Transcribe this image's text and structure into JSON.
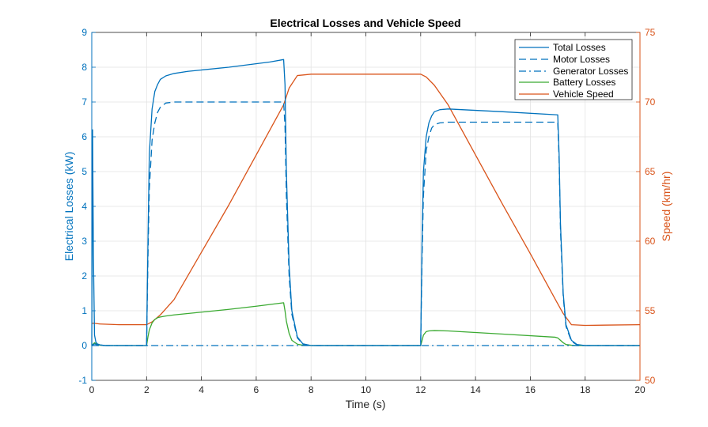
{
  "chart_data": {
    "type": "line",
    "title": "Electrical Losses and Vehicle Speed",
    "xlabel": "Time (s)",
    "ylabel_left": "Electrical Losses (kW)",
    "ylabel_right": "Speed (km/hr)",
    "xlim": [
      0,
      20
    ],
    "ylim_left": [
      -1,
      9
    ],
    "ylim_right": [
      50,
      75
    ],
    "xticks": [
      0,
      2,
      4,
      6,
      8,
      10,
      12,
      14,
      16,
      18,
      20
    ],
    "yticks_left": [
      -1,
      0,
      1,
      2,
      3,
      4,
      5,
      6,
      7,
      8,
      9
    ],
    "yticks_right": [
      50,
      55,
      60,
      65,
      70,
      75
    ],
    "grid": true,
    "legend_position": "top-right",
    "colors": {
      "blue": "#0072BD",
      "orange": "#D95319",
      "green": "#3BAA32"
    },
    "series": [
      {
        "name": "Total Losses",
        "axis": "left",
        "color": "#0072BD",
        "style": "solid",
        "x": [
          0,
          0.03,
          0.06,
          0.1,
          0.15,
          0.2,
          0.3,
          0.5,
          2.0,
          2.05,
          2.1,
          2.2,
          2.3,
          2.4,
          2.5,
          2.7,
          3.0,
          3.5,
          5.0,
          6.5,
          7.0,
          7.05,
          7.1,
          7.2,
          7.3,
          7.5,
          7.7,
          8.0,
          12.0,
          12.05,
          12.1,
          12.2,
          12.3,
          12.4,
          12.5,
          12.7,
          13.0,
          15.0,
          17.0,
          17.05,
          17.1,
          17.2,
          17.3,
          17.5,
          17.7,
          18.0,
          20.0
        ],
        "y": [
          0,
          6.2,
          2.6,
          0.3,
          0.1,
          0.05,
          0.02,
          0,
          0,
          3.0,
          5.5,
          6.8,
          7.3,
          7.5,
          7.65,
          7.75,
          7.82,
          7.88,
          8.0,
          8.15,
          8.22,
          7.5,
          5.0,
          2.3,
          1.0,
          0.25,
          0.05,
          0,
          0,
          3.0,
          5.0,
          6.0,
          6.4,
          6.6,
          6.72,
          6.78,
          6.8,
          6.72,
          6.63,
          5.5,
          3.5,
          1.5,
          0.6,
          0.15,
          0.03,
          0,
          0
        ]
      },
      {
        "name": "Motor Losses",
        "axis": "left",
        "color": "#0072BD",
        "style": "dash",
        "x": [
          0,
          0.5,
          2.0,
          2.05,
          2.1,
          2.2,
          2.3,
          2.4,
          2.5,
          2.7,
          3.0,
          5.0,
          6.5,
          7.0,
          7.05,
          7.1,
          7.2,
          7.3,
          7.5,
          7.7,
          8.0,
          12.0,
          12.05,
          12.1,
          12.2,
          12.3,
          12.4,
          12.5,
          12.7,
          13.0,
          15.0,
          17.0,
          17.05,
          17.1,
          17.2,
          17.3,
          17.5,
          17.7,
          18.0,
          20.0
        ],
        "y": [
          0,
          0,
          0,
          2.5,
          4.5,
          5.9,
          6.4,
          6.7,
          6.85,
          6.97,
          7.0,
          7.0,
          7.0,
          7.0,
          6.3,
          4.3,
          2.0,
          0.9,
          0.22,
          0.04,
          0,
          0,
          2.5,
          4.3,
          5.6,
          6.0,
          6.25,
          6.35,
          6.4,
          6.42,
          6.42,
          6.42,
          5.3,
          3.3,
          1.4,
          0.55,
          0.12,
          0.02,
          0,
          0
        ]
      },
      {
        "name": "Generator Losses",
        "axis": "left",
        "color": "#0072BD",
        "style": "dashdot",
        "x": [
          0,
          0.1,
          0.2,
          0.5,
          20.0
        ],
        "y": [
          0,
          0.05,
          0.02,
          0,
          0
        ]
      },
      {
        "name": "Battery Losses",
        "axis": "left",
        "color": "#3BAA32",
        "style": "solid",
        "x": [
          0,
          0.1,
          0.2,
          0.3,
          0.5,
          2.0,
          2.05,
          2.1,
          2.2,
          2.3,
          2.4,
          2.5,
          2.7,
          3.0,
          4.0,
          5.0,
          6.0,
          7.0,
          7.05,
          7.1,
          7.2,
          7.3,
          7.5,
          7.7,
          8.0,
          12.0,
          12.05,
          12.1,
          12.2,
          12.3,
          12.5,
          13.0,
          15.0,
          16.9,
          17.0,
          17.1,
          17.2,
          17.3,
          17.5,
          17.7,
          18.0,
          20.0
        ],
        "y": [
          0,
          0.08,
          0.03,
          0.01,
          0,
          0,
          0.25,
          0.45,
          0.65,
          0.75,
          0.8,
          0.82,
          0.85,
          0.88,
          0.96,
          1.04,
          1.13,
          1.23,
          1.0,
          0.7,
          0.35,
          0.15,
          0.04,
          0.01,
          0,
          0,
          0.15,
          0.3,
          0.4,
          0.42,
          0.43,
          0.42,
          0.33,
          0.24,
          0.22,
          0.15,
          0.08,
          0.03,
          0.01,
          0,
          0,
          0
        ]
      },
      {
        "name": "Vehicle Speed",
        "axis": "right",
        "color": "#D95319",
        "style": "solid",
        "x": [
          0,
          0.1,
          0.3,
          1.0,
          2.0,
          2.2,
          2.5,
          3.0,
          4.0,
          5.0,
          6.0,
          7.0,
          7.2,
          7.5,
          8.0,
          12.0,
          12.2,
          12.5,
          13.0,
          14.0,
          15.0,
          16.0,
          17.0,
          17.2,
          17.5,
          18.0,
          20.0
        ],
        "y": [
          54.1,
          54.1,
          54.05,
          54.0,
          54.0,
          54.2,
          54.7,
          55.8,
          59.2,
          62.6,
          66.2,
          69.8,
          71.0,
          71.9,
          72.0,
          72.0,
          71.8,
          71.2,
          69.8,
          66.2,
          62.6,
          59.1,
          55.5,
          54.8,
          54.0,
          53.95,
          54.0
        ]
      }
    ]
  }
}
